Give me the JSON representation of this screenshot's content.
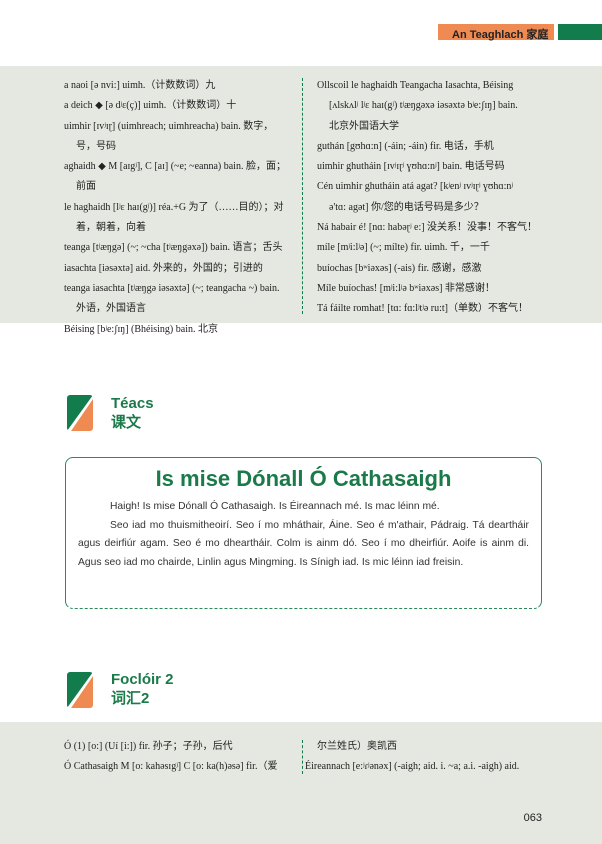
{
  "header": {
    "chapter": "An Teaghlach 家庭",
    "accent": "#ef8a53",
    "brand": "#137c4c"
  },
  "vocab1": {
    "left": [
      {
        "t": "a naoi [ə nvi:] uimh.（计数数词）九",
        "indent": false
      },
      {
        "t": "a deich ◆ [ə dʲɛ(ç)] uimh.（计数数词）十",
        "indent": false
      },
      {
        "t": "uimhir [ɪvʲɪɽ] (uimhreach; uimhreacha) bain. 数字，",
        "indent": false
      },
      {
        "t": "号，号码",
        "indent": true
      },
      {
        "t": "aghaidh ◆ M [aɪgʲ], C [aɪ] (~e; ~eanna) bain. 脸，面；",
        "indent": false
      },
      {
        "t": "前面",
        "indent": true
      },
      {
        "t": "le haghaidh [lʲɛ haɪ(gʲ)] réa.+G 为了（……目的）；对",
        "indent": false
      },
      {
        "t": "着，朝着，向着",
        "indent": true
      },
      {
        "t": "teanga [tʲæŋgə] (~; ~cha [tʲæŋgəxə]) bain. 语言；舌头",
        "indent": false
      },
      {
        "t": "iasachta [iəsəxtə] aid. 外来的，外国的；引进的",
        "indent": false
      },
      {
        "t": "teanga iasachta [tʲæŋgə iəsəxtə] (~; teangacha ~) bain.",
        "indent": false
      },
      {
        "t": "外语，外国语言",
        "indent": true
      },
      {
        "t": "Béising [bʲe:ʃɪŋ] (Bhéising) bain. 北京",
        "indent": false
      }
    ],
    "right": [
      {
        "t": "Ollscoil le haghaidh Teangacha Iasachta, Béising",
        "indent": false
      },
      {
        "t": "[ʌlskʌlʲ lʲɛ haɪ(gʲ) tʲæŋgəxə iəsəxtə bʲe:ʃɪŋ] bain.",
        "indent": true
      },
      {
        "t": "北京外国语大学",
        "indent": true
      },
      {
        "t": "guthán [gʊhɑ:n] (-áin; -áin) fir. 电话，手机",
        "indent": false
      },
      {
        "t": "uimhir ghutháin [ɪvʲɪɽʲ ɣʊhɑ:nʲ] bain. 电话号码",
        "indent": false
      },
      {
        "t": "Cén uimhir ghutháin atá agat? [kʲenʲ ɪvʲɪɽʲ ɣʊhɑ:nʲ",
        "indent": false
      },
      {
        "t": "ə'tɑ: agət] 你/您的电话号码是多少？",
        "indent": true
      },
      {
        "t": "Ná habair é! [nɑ: habəɽʲ e:] 没关系！没事！不客气！",
        "indent": false
      },
      {
        "t": "míle [mʲi:lʲə] (~; mílte) fir. uimh. 千，一千",
        "indent": false
      },
      {
        "t": "buíochas [bʷiəxəs] (-ais) fir. 感谢，感激",
        "indent": false
      },
      {
        "t": "Míle buíochas! [mʲi:lʲə bʷiəxəs] 非常感谢！",
        "indent": false
      },
      {
        "t": "Tá fáilte romhat! [tɑ: fɑ:lʲtʲə ru:t]（单数）不客气！",
        "indent": false
      }
    ]
  },
  "section_text": {
    "title_ga": "Téacs",
    "title_zh": "课文"
  },
  "reading": {
    "title": "Is mise Dónall Ó Cathasaigh",
    "paragraphs": [
      "Haigh! Is mise Dónall Ó Cathasaigh. Is Éireannach mé. Is mac léinn mé.",
      "Seo iad mo thuismitheoirí. Seo í mo mháthair, Áine. Seo é m'athair, Pádraig. Tá deartháir agus deirfiúr agam. Seo é mo dheartháir. Colm is ainm dó. Seo í mo dheirfiúr. Aoife is ainm di. Agus seo iad mo chairde, Linlin agus Mingming. Is Sínigh iad. Is mic léinn iad freisin."
    ]
  },
  "section_vocab2": {
    "title_ga": "Foclóir 2",
    "title_zh": "词汇2"
  },
  "vocab2": {
    "left": [
      {
        "t": "Ó (1) [o:] (Uí [i:]) fir. 孙子；子孙，后代",
        "indent": false
      },
      {
        "t": "Ó Cathasaigh M [o: kahəsɪgʲ] C [o: ka(h)əsə] fir.（爱",
        "indent": false
      }
    ],
    "right": [
      {
        "t": "尔兰姓氏）奥凯西",
        "indent": true
      },
      {
        "t": "Éireannach [e:ʲɾʲənəx] (-aigh; aid. i. ~a; a.i. -aigh) aid.",
        "indent": false
      }
    ]
  },
  "page_number": "063"
}
